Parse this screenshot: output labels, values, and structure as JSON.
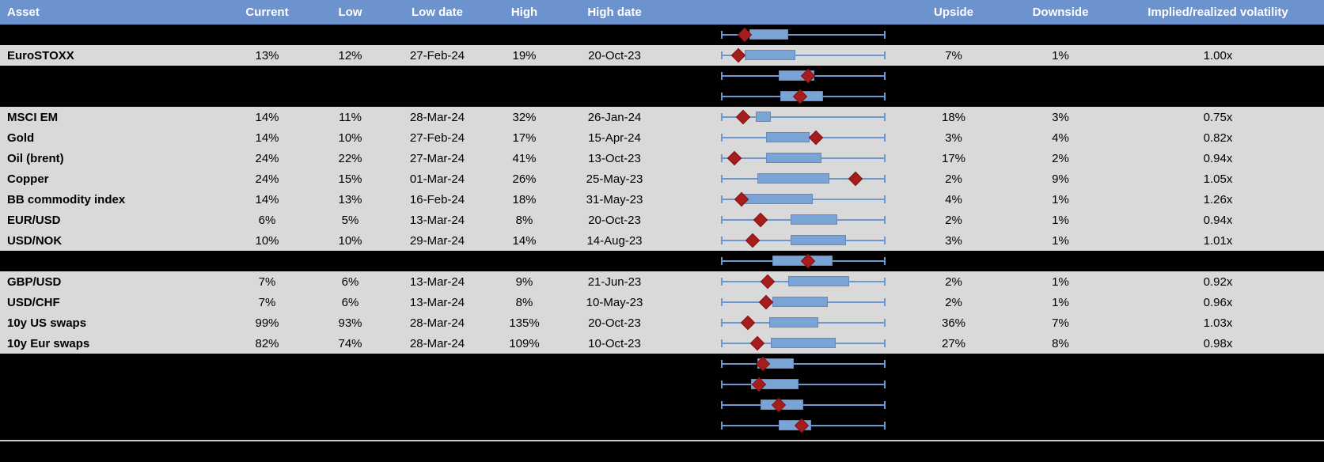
{
  "header": {
    "columns": [
      "Asset",
      "Current",
      "Low",
      "Low date",
      "High",
      "High date",
      "",
      "Upside",
      "Downside",
      "Implied/realized volatility"
    ]
  },
  "colors": {
    "header_bg": "#6c93ce",
    "row_bg": "#d9d9d9",
    "hidden_row_bg": "#000000",
    "whisker_blue": "#6d98cd",
    "box_fill_blue": "#7ba4d6",
    "box_border_blue": "#5f8cc0",
    "marker_red": "#a51d1d",
    "header_text": "#ffffff",
    "footer_line": "#c9c9c9"
  },
  "chart_data": {
    "type": "table",
    "note": "Each row carries a normalized range box-plot: whisker spans low-high range (0 to 1), box = typical range, diamond marker = current level",
    "columns": [
      "Asset",
      "Current",
      "Low",
      "Low date",
      "High",
      "High date",
      "Upside",
      "Downside",
      "Implied/realized volatility"
    ]
  },
  "rows": [
    {
      "type": "hidden",
      "plot": {
        "box": [
          0.17,
          0.41
        ],
        "marker": 0.14
      }
    },
    {
      "type": "data",
      "asset": "EuroSTOXX",
      "current": "13%",
      "low": "12%",
      "low_date": "27-Feb-24",
      "high": "19%",
      "high_date": "20-Oct-23",
      "upside": "7%",
      "downside": "1%",
      "implied_realized": "1.00x",
      "plot": {
        "box": [
          0.14,
          0.45
        ],
        "marker": 0.1
      }
    },
    {
      "type": "hidden",
      "plot": {
        "box": [
          0.35,
          0.57
        ],
        "marker": 0.53
      }
    },
    {
      "type": "hidden",
      "plot": {
        "box": [
          0.36,
          0.62
        ],
        "marker": 0.48
      }
    },
    {
      "type": "data",
      "asset": "MSCI EM",
      "current": "14%",
      "low": "11%",
      "low_date": "28-Mar-24",
      "high": "32%",
      "high_date": "26-Jan-24",
      "upside": "18%",
      "downside": "3%",
      "implied_realized": "0.75x",
      "plot": {
        "box": [
          0.21,
          0.3
        ],
        "marker": 0.13
      }
    },
    {
      "type": "data",
      "asset": "Gold",
      "current": "14%",
      "low": "10%",
      "low_date": "27-Feb-24",
      "high": "17%",
      "high_date": "15-Apr-24",
      "upside": "3%",
      "downside": "4%",
      "implied_realized": "0.82x",
      "plot": {
        "box": [
          0.27,
          0.54
        ],
        "marker": 0.58
      }
    },
    {
      "type": "data",
      "asset": "Oil (brent)",
      "current": "24%",
      "low": "22%",
      "low_date": "27-Mar-24",
      "high": "41%",
      "high_date": "13-Oct-23",
      "upside": "17%",
      "downside": "2%",
      "implied_realized": "0.94x",
      "plot": {
        "box": [
          0.27,
          0.61
        ],
        "marker": 0.08
      }
    },
    {
      "type": "data",
      "asset": "Copper",
      "current": "24%",
      "low": "15%",
      "low_date": "01-Mar-24",
      "high": "26%",
      "high_date": "25-May-23",
      "upside": "2%",
      "downside": "9%",
      "implied_realized": "1.05x",
      "plot": {
        "box": [
          0.22,
          0.66
        ],
        "marker": 0.82
      }
    },
    {
      "type": "data",
      "asset": "BB commodity index",
      "current": "14%",
      "low": "13%",
      "low_date": "16-Feb-24",
      "high": "18%",
      "high_date": "31-May-23",
      "upside": "4%",
      "downside": "1%",
      "implied_realized": "1.26x",
      "plot": {
        "box": [
          0.13,
          0.56
        ],
        "marker": 0.12
      }
    },
    {
      "type": "data",
      "asset": "EUR/USD",
      "current": "6%",
      "low": "5%",
      "low_date": "13-Mar-24",
      "high": "8%",
      "high_date": "20-Oct-23",
      "upside": "2%",
      "downside": "1%",
      "implied_realized": "0.94x",
      "plot": {
        "box": [
          0.42,
          0.71
        ],
        "marker": 0.24
      }
    },
    {
      "type": "data",
      "asset": "USD/NOK",
      "current": "10%",
      "low": "10%",
      "low_date": "29-Mar-24",
      "high": "14%",
      "high_date": "14-Aug-23",
      "upside": "3%",
      "downside": "1%",
      "implied_realized": "1.01x",
      "plot": {
        "box": [
          0.42,
          0.76
        ],
        "marker": 0.19
      }
    },
    {
      "type": "hidden",
      "plot": {
        "box": [
          0.31,
          0.68
        ],
        "marker": 0.53
      }
    },
    {
      "type": "data",
      "asset": "GBP/USD",
      "current": "7%",
      "low": "6%",
      "low_date": "13-Mar-24",
      "high": "9%",
      "high_date": "21-Jun-23",
      "upside": "2%",
      "downside": "1%",
      "implied_realized": "0.92x",
      "plot": {
        "box": [
          0.41,
          0.78
        ],
        "marker": 0.28
      }
    },
    {
      "type": "data",
      "asset": "USD/CHF",
      "current": "7%",
      "low": "6%",
      "low_date": "13-Mar-24",
      "high": "8%",
      "high_date": "10-May-23",
      "upside": "2%",
      "downside": "1%",
      "implied_realized": "0.96x",
      "plot": {
        "box": [
          0.31,
          0.65
        ],
        "marker": 0.27
      }
    },
    {
      "type": "data",
      "asset": "10y US swaps",
      "current": "99%",
      "low": "93%",
      "low_date": "28-Mar-24",
      "high": "135%",
      "high_date": "20-Oct-23",
      "upside": "36%",
      "downside": "7%",
      "implied_realized": "1.03x",
      "plot": {
        "box": [
          0.29,
          0.59
        ],
        "marker": 0.16
      }
    },
    {
      "type": "data",
      "asset": "10y Eur swaps",
      "current": "82%",
      "low": "74%",
      "low_date": "28-Mar-24",
      "high": "109%",
      "high_date": "10-Oct-23",
      "upside": "27%",
      "downside": "8%",
      "implied_realized": "0.98x",
      "plot": {
        "box": [
          0.3,
          0.7
        ],
        "marker": 0.22
      }
    },
    {
      "type": "hidden",
      "plot": {
        "box": [
          0.22,
          0.44
        ],
        "marker": 0.25
      }
    },
    {
      "type": "hidden",
      "plot": {
        "box": [
          0.18,
          0.47
        ],
        "marker": 0.23
      }
    },
    {
      "type": "hidden",
      "plot": {
        "box": [
          0.24,
          0.5
        ],
        "marker": 0.35
      }
    },
    {
      "type": "hidden",
      "plot": {
        "box": [
          0.35,
          0.55
        ],
        "marker": 0.49
      }
    }
  ]
}
